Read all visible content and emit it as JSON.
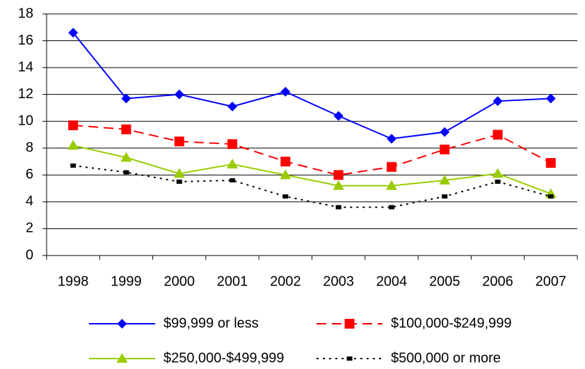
{
  "chart_data": {
    "type": "line",
    "categories": [
      "1998",
      "1999",
      "2000",
      "2001",
      "2002",
      "2003",
      "2004",
      "2005",
      "2006",
      "2007"
    ],
    "series": [
      {
        "name": "$99,999 or less",
        "color": "#0000ff",
        "dash": "solid",
        "marker": "diamond",
        "values": [
          16.6,
          11.7,
          12.0,
          11.1,
          12.2,
          10.4,
          8.7,
          9.2,
          11.5,
          11.7
        ]
      },
      {
        "name": "$100,000-$249,999",
        "color": "#ff0000",
        "dash": "dashed",
        "marker": "square",
        "values": [
          9.7,
          9.4,
          8.5,
          8.3,
          7.0,
          6.0,
          6.6,
          7.9,
          9.0,
          6.9
        ]
      },
      {
        "name": "$250,000-$499,999",
        "color": "#99cc00",
        "dash": "solid",
        "marker": "triangle",
        "values": [
          8.2,
          7.3,
          6.1,
          6.8,
          6.0,
          5.2,
          5.2,
          5.6,
          6.1,
          4.6
        ]
      },
      {
        "name": "$500,000 or more",
        "color": "#000000",
        "dash": "dotted",
        "marker": "small-square",
        "values": [
          6.7,
          6.2,
          5.5,
          5.6,
          4.4,
          3.6,
          3.6,
          4.4,
          5.5,
          4.4
        ]
      }
    ],
    "ylim": [
      0,
      18
    ],
    "yticks": [
      0,
      2,
      4,
      6,
      8,
      10,
      12,
      14,
      16,
      18
    ],
    "grid": true,
    "legend": "bottom"
  }
}
